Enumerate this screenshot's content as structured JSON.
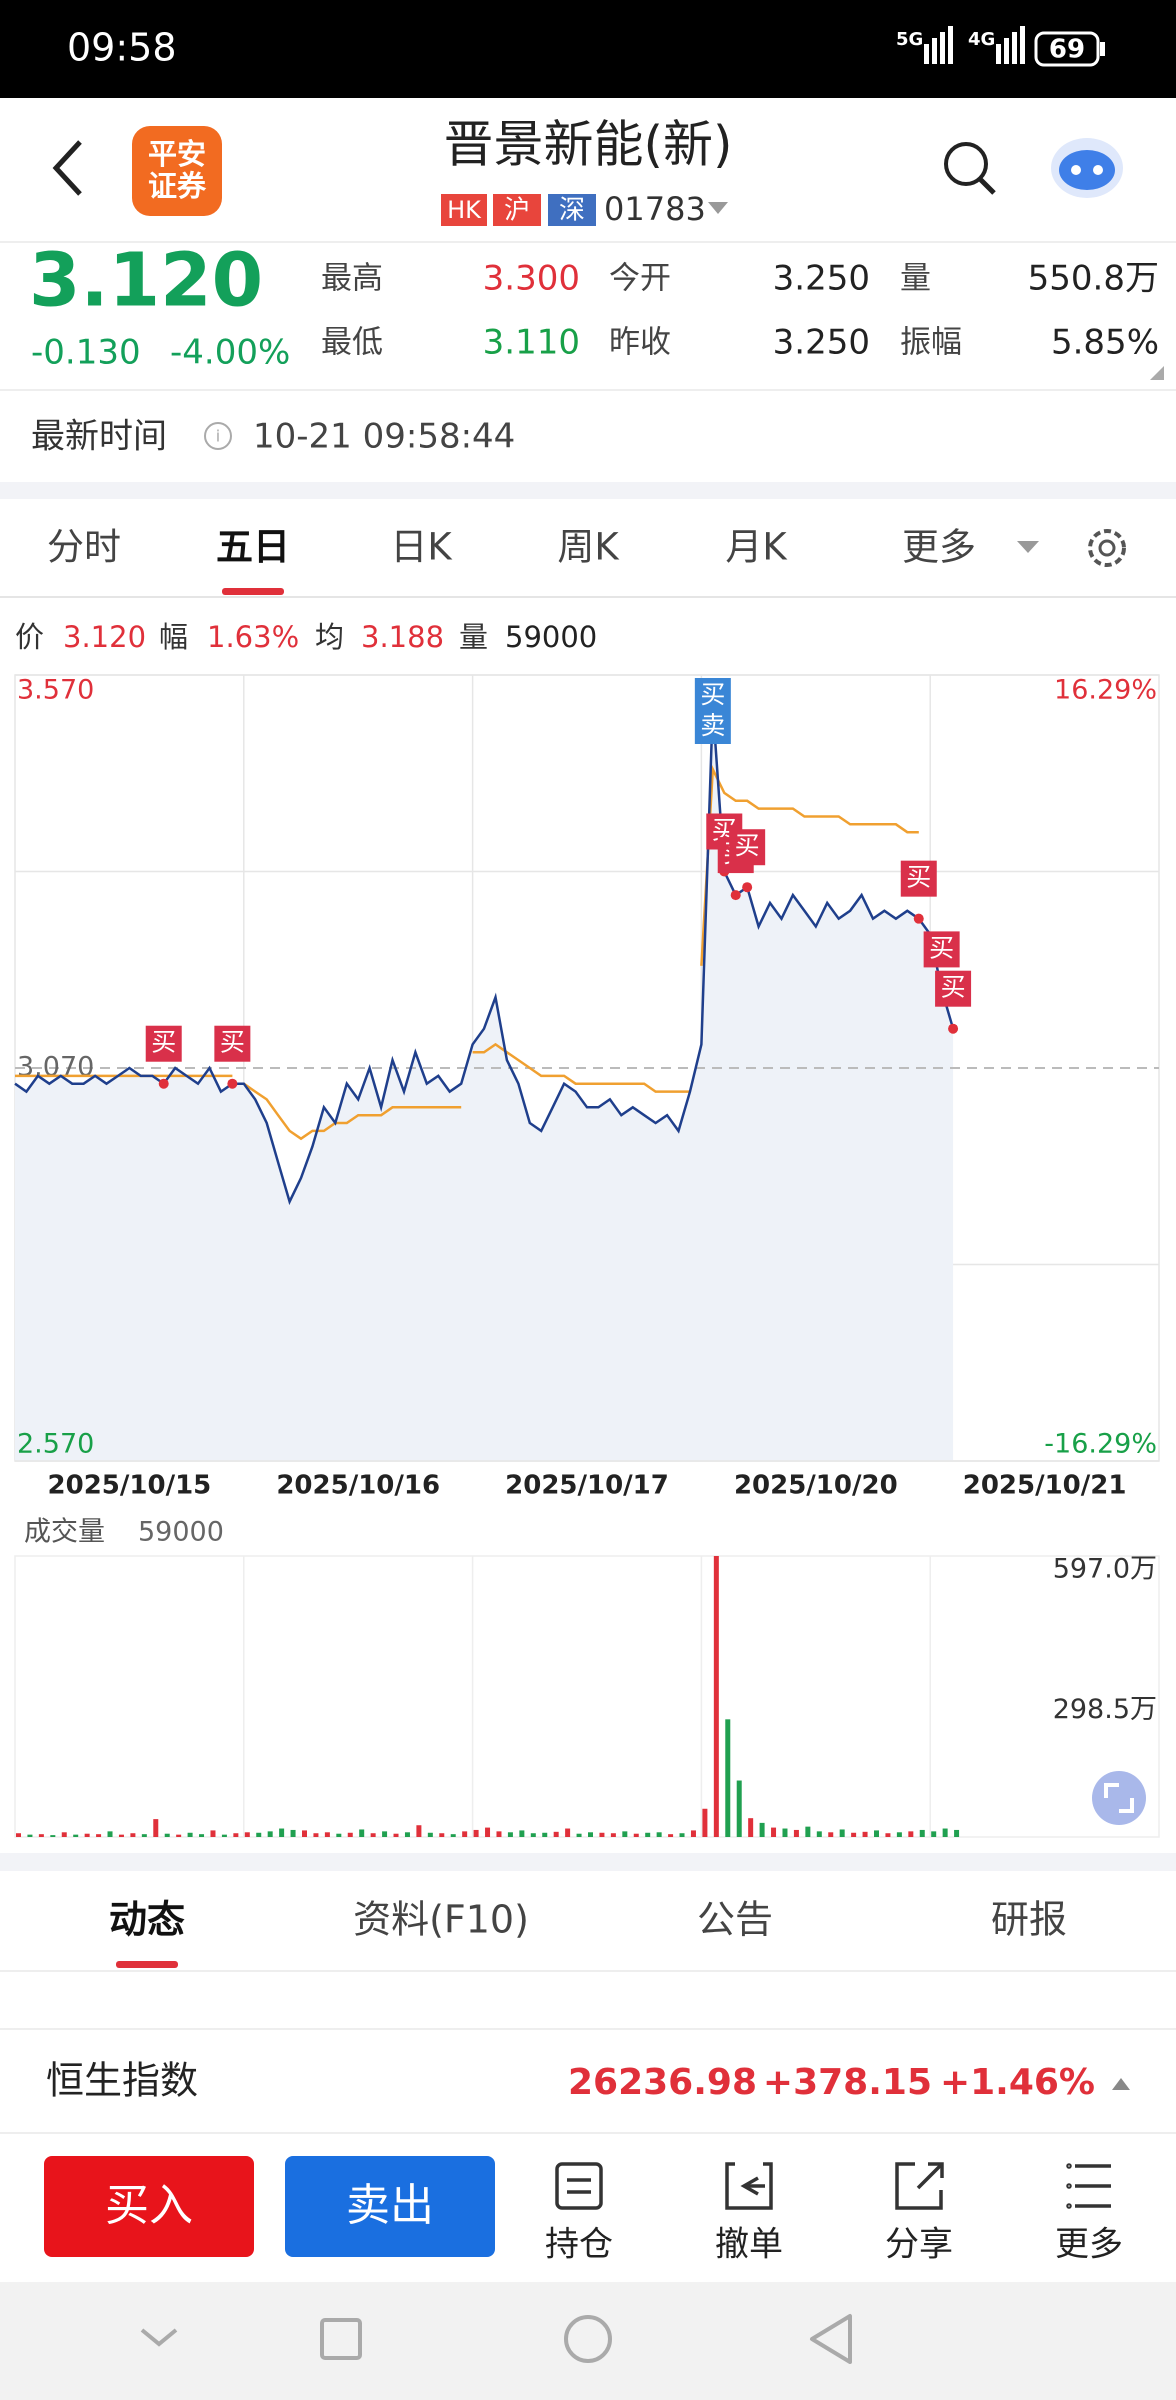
{
  "status_bar": {
    "time": "09:58",
    "net": [
      "5G",
      "4G"
    ],
    "battery": "69"
  },
  "header": {
    "logo": [
      "平安",
      "证券"
    ],
    "title": "晋景新能(新)",
    "tags": [
      "HK",
      "沪",
      "深"
    ],
    "code": "01783"
  },
  "quote": {
    "price": "3.120",
    "change": "-0.130",
    "change_pct": "-4.00%",
    "fields": [
      {
        "label": "最高",
        "value": "3.300",
        "tone": "up"
      },
      {
        "label": "今开",
        "value": "3.250",
        "tone": "flat"
      },
      {
        "label": "量",
        "value": "550.8万",
        "tone": "flat"
      },
      {
        "label": "最低",
        "value": "3.110",
        "tone": "down"
      },
      {
        "label": "昨收",
        "value": "3.250",
        "tone": "flat"
      },
      {
        "label": "振幅",
        "value": "5.85%",
        "tone": "flat"
      }
    ]
  },
  "time_row": {
    "label": "最新时间",
    "value": "10-21 09:58:44"
  },
  "tabs": {
    "items": [
      "分时",
      "五日",
      "日K",
      "周K",
      "月K",
      "更多"
    ],
    "active": 1
  },
  "info_bar": [
    {
      "label": "价",
      "value": "3.120"
    },
    {
      "label": "幅",
      "value": "1.63%"
    },
    {
      "label": "均",
      "value": "3.188"
    },
    {
      "label": "量",
      "value": "59000"
    }
  ],
  "chart": {
    "type": "line",
    "days": [
      "2025/10/15",
      "2025/10/16",
      "2025/10/17",
      "2025/10/20",
      "2025/10/21"
    ],
    "ylim": [
      2.57,
      3.57
    ],
    "yticks": [
      {
        "value": 3.57,
        "label": "3.570"
      },
      {
        "value": 3.07,
        "label": "3.070"
      },
      {
        "value": 2.57,
        "label": "2.570"
      }
    ],
    "y2lim": [
      -16.29,
      16.29
    ],
    "y2ticks": [
      {
        "value": 16.29,
        "label": "16.29%"
      },
      {
        "value": -16.29,
        "label": "-16.29%"
      }
    ],
    "price": [
      3.05,
      3.04,
      3.06,
      3.05,
      3.06,
      3.05,
      3.05,
      3.06,
      3.05,
      3.06,
      3.07,
      3.06,
      3.06,
      3.05,
      3.07,
      3.06,
      3.05,
      3.07,
      3.04,
      3.05,
      3.05,
      3.03,
      3.0,
      2.95,
      2.9,
      2.93,
      2.97,
      3.02,
      3.0,
      3.05,
      3.03,
      3.07,
      3.02,
      3.08,
      3.04,
      3.09,
      3.05,
      3.06,
      3.04,
      3.05,
      3.1,
      3.12,
      3.16,
      3.08,
      3.05,
      3.0,
      2.99,
      3.02,
      3.05,
      3.04,
      3.02,
      3.02,
      3.03,
      3.01,
      3.02,
      3.01,
      3.0,
      3.01,
      2.99,
      3.04,
      3.1,
      3.53,
      3.32,
      3.29,
      3.3,
      3.25,
      3.28,
      3.26,
      3.29,
      3.27,
      3.25,
      3.28,
      3.26,
      3.27,
      3.29,
      3.26,
      3.27,
      3.26,
      3.27,
      3.26,
      3.24,
      3.17,
      3.12
    ],
    "avg_days": [
      [
        3.06,
        3.06,
        3.06,
        3.06,
        3.06,
        3.06,
        3.06,
        3.06,
        3.06,
        3.06,
        3.06,
        3.06,
        3.06,
        3.06,
        3.06,
        3.06,
        3.06,
        3.06,
        3.06,
        3.06
      ],
      [
        3.05,
        3.04,
        3.03,
        3.01,
        2.99,
        2.98,
        2.99,
        2.99,
        3.0,
        3.0,
        3.01,
        3.01,
        3.01,
        3.02,
        3.02,
        3.02,
        3.02,
        3.02,
        3.02,
        3.02
      ],
      [
        3.09,
        3.09,
        3.1,
        3.09,
        3.08,
        3.07,
        3.06,
        3.06,
        3.06,
        3.05,
        3.05,
        3.05,
        3.05,
        3.05,
        3.05,
        3.05,
        3.04,
        3.04,
        3.04,
        3.04
      ],
      [
        3.2,
        3.45,
        3.42,
        3.41,
        3.41,
        3.4,
        3.4,
        3.4,
        3.4,
        3.39,
        3.39,
        3.39,
        3.39,
        3.38,
        3.38,
        3.38,
        3.38,
        3.38,
        3.37,
        3.37
      ]
    ],
    "markers": [
      {
        "label": "买",
        "point": 13
      },
      {
        "label": "买",
        "point": 19
      },
      {
        "label": [
          "买",
          "卖"
        ],
        "point": 61,
        "style": "blue"
      },
      {
        "label": "买",
        "point": 62
      },
      {
        "label": "买",
        "point": 63
      },
      {
        "label": "买",
        "point": 64
      },
      {
        "label": "买",
        "point": 79
      },
      {
        "label": "买",
        "point": 81
      },
      {
        "label": "买",
        "point": 82
      }
    ],
    "volume_label": "成交量",
    "volume_value": "59000",
    "volume": [
      8,
      5,
      6,
      4,
      10,
      5,
      7,
      6,
      12,
      5,
      8,
      6,
      38,
      7,
      5,
      9,
      6,
      14,
      5,
      8,
      10,
      9,
      12,
      18,
      15,
      14,
      8,
      10,
      7,
      9,
      16,
      8,
      12,
      7,
      10,
      25,
      9,
      8,
      6,
      12,
      15,
      20,
      12,
      10,
      14,
      8,
      9,
      11,
      18,
      7,
      10,
      9,
      8,
      12,
      7,
      9,
      10,
      6,
      8,
      14,
      60,
      597,
      250,
      120,
      40,
      30,
      20,
      18,
      15,
      22,
      12,
      10,
      16,
      9,
      11,
      14,
      8,
      10,
      12,
      15,
      12,
      18,
      15
    ],
    "vlim": [
      0,
      597
    ],
    "vticks": [
      {
        "value": 597,
        "label": "597.0万"
      },
      {
        "value": 298.5,
        "label": "298.5万"
      }
    ]
  },
  "bottom_tabs": {
    "items": [
      "动态",
      "资料(F10)",
      "公告",
      "研报"
    ],
    "active": 0
  },
  "index_bar": {
    "name": "恒生指数",
    "value": "26236.98",
    "change": "+378.15",
    "pct": "+1.46%"
  },
  "actions": {
    "buy": "买入",
    "sell": "卖出",
    "tools": [
      "持仓",
      "撤单",
      "分享",
      "更多"
    ]
  }
}
